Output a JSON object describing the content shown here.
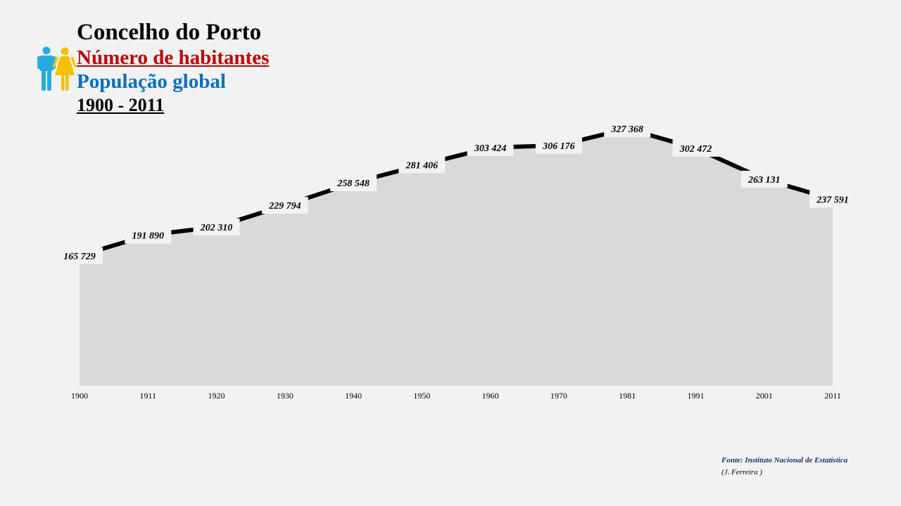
{
  "header": {
    "title": "Concelho do Porto",
    "subtitle": "Número de habitantes",
    "metric": "População global",
    "period": "1900 - 2011"
  },
  "icons": {
    "people": "people-icon"
  },
  "colors": {
    "title": "#000000",
    "subtitle": "#c00000",
    "metric": "#0070c0",
    "area_fill": "#d9d9d9",
    "line": "#000000",
    "male_icon": "#29a9e0",
    "female_icon": "#f5c100"
  },
  "chart_data": {
    "type": "area",
    "x": [
      "1900",
      "1911",
      "1920",
      "1930",
      "1940",
      "1950",
      "1960",
      "1970",
      "1981",
      "1991",
      "2001",
      "2011"
    ],
    "values": [
      165729,
      191890,
      202310,
      229794,
      258548,
      281406,
      303424,
      306176,
      327368,
      302472,
      263131,
      237591
    ],
    "data_labels": [
      "165 729",
      "191 890",
      "202 310",
      "229 794",
      "258 548",
      "281 406",
      "303 424",
      "306 176",
      "327 368",
      "302 472",
      "263 131",
      "237 591"
    ],
    "ylim": [
      0,
      400000
    ],
    "grid": false,
    "legend": "none"
  },
  "footer": {
    "source": "Fonte: Instituto Nacional de Estatística",
    "author": "(J. Ferreira )"
  }
}
